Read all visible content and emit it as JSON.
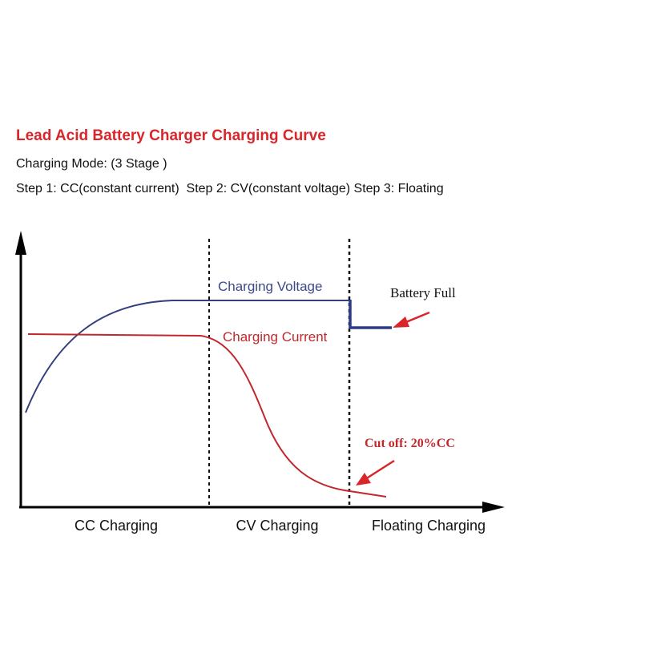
{
  "header": {
    "title": "Lead Acid Battery Charger Charging Curve",
    "lines": [
      "Charging Mode: (3 Stage )",
      "Step 1: CC(constant current)  Step 2: CV(constant voltage) Step 3: Floating"
    ]
  },
  "diagram": {
    "curves": [
      {
        "label": "Charging Voltage"
      },
      {
        "label": "Charging Current"
      }
    ],
    "annotations": [
      "Battery Full",
      "Cut off: 20%CC"
    ],
    "phases": [
      "CC Charging",
      "CV Charging",
      "Floating Charging"
    ]
  }
}
